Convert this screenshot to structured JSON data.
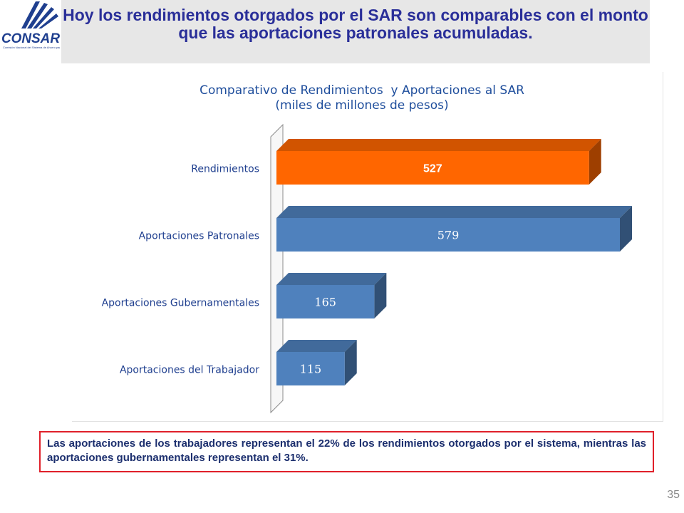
{
  "logo": {
    "name": "CONSAR",
    "subtitle": "Comisión Nacional del Sistema de Ahorro para el Retiro",
    "icon": "consar-rays-logo"
  },
  "header": {
    "title": "Hoy los rendimientos otorgados por el SAR son comparables con el monto que las aportaciones patronales acumuladas."
  },
  "chart_data": {
    "type": "bar",
    "orientation": "horizontal",
    "style": "3d",
    "title": "Comparativo de Rendimientos  y Aportaciones al SAR",
    "subtitle": "(miles de millones de pesos)",
    "categories": [
      "Rendimientos",
      "Aportaciones Patronales",
      "Aportaciones Gubernamentales",
      "Aportaciones del Trabajador"
    ],
    "values": [
      527,
      579,
      165,
      115
    ],
    "colors": [
      "#ff6600",
      "#4f81bd",
      "#4f81bd",
      "#4f81bd"
    ],
    "xlim": [
      0,
      579
    ],
    "grid": false,
    "legend": "none"
  },
  "note": {
    "text": "Las aportaciones de los trabajadores representan el 22% de los rendimientos otorgados por el sistema, mientras las aportaciones gubernamentales representan el 31%."
  },
  "page_number": "35",
  "colors": {
    "title_text": "#2a2f99",
    "chart_title": "#1f4e9c",
    "category_label": "#1f3f8f",
    "header_bg": "#e7e7e7",
    "note_border": "#e0202a",
    "highlight_bar": "#ff6600",
    "bar": "#4f81bd"
  }
}
